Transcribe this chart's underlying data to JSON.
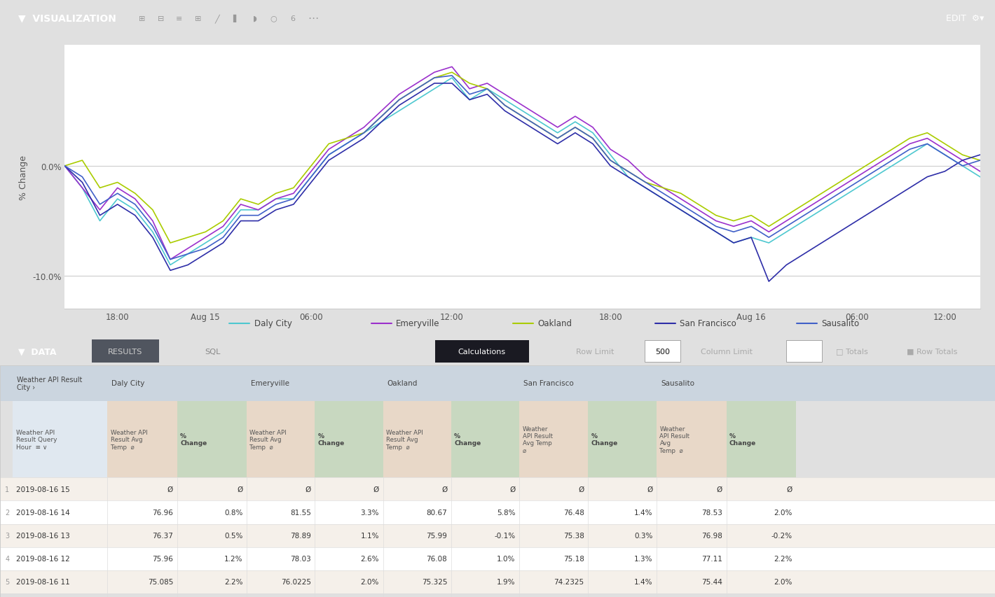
{
  "title": "VISUALIZATION",
  "chart_ylabel": "% Change",
  "x_tick_labels": [
    "18:00",
    "Aug 15",
    "06:00",
    "12:00",
    "18:00",
    "Aug 16",
    "06:00",
    "12:00"
  ],
  "cities": [
    "Daly City",
    "Emeryville",
    "Oakland",
    "San Francisco",
    "Sausalito"
  ],
  "city_colors": [
    "#4EC8D0",
    "#9B30CC",
    "#AACC00",
    "#2E2EA8",
    "#4060C8"
  ],
  "line_data": {
    "Daly City": [
      0.0,
      -0.02,
      -0.05,
      -0.03,
      -0.04,
      -0.06,
      -0.09,
      -0.08,
      -0.07,
      -0.06,
      -0.04,
      -0.04,
      -0.03,
      -0.03,
      -0.01,
      0.01,
      0.02,
      0.03,
      0.04,
      0.05,
      0.06,
      0.07,
      0.08,
      0.06,
      0.07,
      0.06,
      0.05,
      0.04,
      0.03,
      0.04,
      0.03,
      0.01,
      -0.01,
      -0.02,
      -0.03,
      -0.04,
      -0.05,
      -0.06,
      -0.07,
      -0.065,
      -0.07,
      -0.06,
      -0.05,
      -0.04,
      -0.03,
      -0.02,
      -0.01,
      0.0,
      0.01,
      0.02,
      0.01,
      0.0,
      -0.01
    ],
    "Emeryville": [
      0.0,
      -0.02,
      -0.04,
      -0.02,
      -0.03,
      -0.05,
      -0.085,
      -0.075,
      -0.065,
      -0.055,
      -0.035,
      -0.04,
      -0.03,
      -0.025,
      -0.005,
      0.015,
      0.025,
      0.035,
      0.05,
      0.065,
      0.075,
      0.085,
      0.09,
      0.07,
      0.075,
      0.065,
      0.055,
      0.045,
      0.035,
      0.045,
      0.035,
      0.015,
      0.005,
      -0.01,
      -0.02,
      -0.03,
      -0.04,
      -0.05,
      -0.055,
      -0.05,
      -0.06,
      -0.05,
      -0.04,
      -0.03,
      -0.02,
      -0.01,
      0.0,
      0.01,
      0.02,
      0.025,
      0.015,
      0.005,
      -0.005
    ],
    "Oakland": [
      0.0,
      0.005,
      -0.02,
      -0.015,
      -0.025,
      -0.04,
      -0.07,
      -0.065,
      -0.06,
      -0.05,
      -0.03,
      -0.035,
      -0.025,
      -0.02,
      0.0,
      0.02,
      0.025,
      0.03,
      0.045,
      0.06,
      0.07,
      0.08,
      0.085,
      0.075,
      0.07,
      0.055,
      0.045,
      0.035,
      0.025,
      0.035,
      0.025,
      0.005,
      -0.005,
      -0.015,
      -0.02,
      -0.025,
      -0.035,
      -0.045,
      -0.05,
      -0.045,
      -0.055,
      -0.045,
      -0.035,
      -0.025,
      -0.015,
      -0.005,
      0.005,
      0.015,
      0.025,
      0.03,
      0.02,
      0.01,
      0.005
    ],
    "San Francisco": [
      0.0,
      -0.015,
      -0.045,
      -0.035,
      -0.045,
      -0.065,
      -0.095,
      -0.09,
      -0.08,
      -0.07,
      -0.05,
      -0.05,
      -0.04,
      -0.035,
      -0.015,
      0.005,
      0.015,
      0.025,
      0.04,
      0.055,
      0.065,
      0.075,
      0.075,
      0.06,
      0.065,
      0.05,
      0.04,
      0.03,
      0.02,
      0.03,
      0.02,
      0.0,
      -0.01,
      -0.02,
      -0.03,
      -0.04,
      -0.05,
      -0.06,
      -0.07,
      -0.065,
      -0.105,
      -0.09,
      -0.08,
      -0.07,
      -0.06,
      -0.05,
      -0.04,
      -0.03,
      -0.02,
      -0.01,
      -0.005,
      0.005,
      0.01
    ],
    "Sausalito": [
      0.0,
      -0.01,
      -0.035,
      -0.025,
      -0.035,
      -0.055,
      -0.085,
      -0.08,
      -0.075,
      -0.065,
      -0.045,
      -0.045,
      -0.035,
      -0.03,
      -0.01,
      0.01,
      0.02,
      0.03,
      0.045,
      0.06,
      0.07,
      0.08,
      0.082,
      0.065,
      0.07,
      0.055,
      0.045,
      0.035,
      0.025,
      0.035,
      0.025,
      0.005,
      -0.005,
      -0.015,
      -0.025,
      -0.035,
      -0.045,
      -0.055,
      -0.06,
      -0.055,
      -0.065,
      -0.055,
      -0.045,
      -0.035,
      -0.025,
      -0.015,
      -0.005,
      0.005,
      0.015,
      0.02,
      0.01,
      0.0,
      0.005
    ]
  },
  "toolbar_bg": "#2D3035",
  "toolbar_text": "#FFFFFF",
  "data_bar_bg": "#383C42",
  "table_header_row1_bg": "#CBD5DF",
  "table_header_row2_beige": "#E8D8C8",
  "table_header_row2_green": "#C8D8C0",
  "table_header_date_bg": "#E0E8F0",
  "table_body_bg_odd": "#F5F0EA",
  "table_body_bg_even": "#FFFFFF",
  "table_rows": [
    {
      "row_num": "1",
      "date": "2019-08-16 15",
      "daly_temp": "Ø",
      "daly_pct": "Ø",
      "emery_temp": "Ø",
      "emery_pct": "Ø",
      "oak_temp": "Ø",
      "oak_pct": "Ø",
      "sf_temp": "Ø",
      "sf_pct": "Ø",
      "saus_temp": "Ø",
      "saus_pct": "Ø"
    },
    {
      "row_num": "2",
      "date": "2019-08-16 14",
      "daly_temp": "76.96",
      "daly_pct": "0.8%",
      "emery_temp": "81.55",
      "emery_pct": "3.3%",
      "oak_temp": "80.67",
      "oak_pct": "5.8%",
      "sf_temp": "76.48",
      "sf_pct": "1.4%",
      "saus_temp": "78.53",
      "saus_pct": "2.0%"
    },
    {
      "row_num": "3",
      "date": "2019-08-16 13",
      "daly_temp": "76.37",
      "daly_pct": "0.5%",
      "emery_temp": "78.89",
      "emery_pct": "1.1%",
      "oak_temp": "75.99",
      "oak_pct": "-0.1%",
      "sf_temp": "75.38",
      "sf_pct": "0.3%",
      "saus_temp": "76.98",
      "saus_pct": "-0.2%"
    },
    {
      "row_num": "4",
      "date": "2019-08-16 12",
      "daly_temp": "75.96",
      "daly_pct": "1.2%",
      "emery_temp": "78.03",
      "emery_pct": "2.6%",
      "oak_temp": "76.08",
      "oak_pct": "1.0%",
      "sf_temp": "75.18",
      "sf_pct": "1.3%",
      "saus_temp": "77.11",
      "saus_pct": "2.2%"
    },
    {
      "row_num": "5",
      "date": "2019-08-16 11",
      "daly_temp": "75.085",
      "daly_pct": "2.2%",
      "emery_temp": "76.0225",
      "emery_pct": "2.0%",
      "oak_temp": "75.325",
      "oak_pct": "1.9%",
      "sf_temp": "74.2325",
      "sf_pct": "1.4%",
      "saus_temp": "75.44",
      "saus_pct": "2.0%"
    }
  ],
  "section_starts": [
    0.013,
    0.108,
    0.248,
    0.385,
    0.522,
    0.66
  ],
  "section_ends": [
    0.108,
    0.248,
    0.385,
    0.522,
    0.66,
    0.8
  ],
  "section_names": [
    "Weather API Result\nCity ›",
    "Daly City",
    "Emeryville",
    "Oakland",
    "San Francisco",
    "Sausalito"
  ]
}
